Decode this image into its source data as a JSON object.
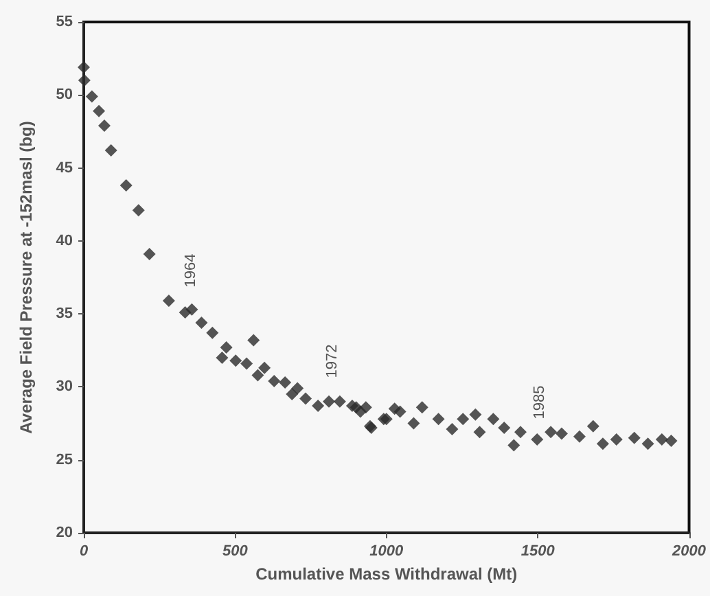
{
  "chart_data": {
    "type": "scatter",
    "xlabel": "Cumulative Mass Withdrawal (Mt)",
    "ylabel": "Average Field Pressure at -152masl (bg)",
    "x": [
      0,
      2,
      27,
      50,
      68,
      90,
      140,
      181,
      217,
      281,
      335,
      357,
      389,
      425,
      457,
      471,
      502,
      538,
      561,
      575,
      597,
      629,
      665,
      688,
      706,
      733,
      774,
      810,
      846,
      887,
      900,
      914,
      932,
      946,
      950,
      991,
      1000,
      1027,
      1045,
      1090,
      1118,
      1172,
      1217,
      1253,
      1294,
      1308,
      1353,
      1389,
      1421,
      1443,
      1498,
      1543,
      1579,
      1638,
      1683,
      1715,
      1760,
      1819,
      1864,
      1910,
      1941
    ],
    "values": [
      51.9,
      51.0,
      49.9,
      48.9,
      47.9,
      46.2,
      43.8,
      42.1,
      39.1,
      35.9,
      35.1,
      35.3,
      34.4,
      33.7,
      32.0,
      32.7,
      31.8,
      31.6,
      33.2,
      30.8,
      31.3,
      30.4,
      30.3,
      29.5,
      29.9,
      29.2,
      28.7,
      29.0,
      29.0,
      28.7,
      28.6,
      28.3,
      28.6,
      27.3,
      27.2,
      27.8,
      27.8,
      28.5,
      28.3,
      27.5,
      28.6,
      27.8,
      27.1,
      27.8,
      28.1,
      26.9,
      27.8,
      27.2,
      26.0,
      26.9,
      26.4,
      26.9,
      26.8,
      26.6,
      27.3,
      26.1,
      26.4,
      26.5,
      26.1,
      26.4,
      26.3
    ],
    "color": "#2b2b2b",
    "marker": "diamond",
    "xlim": [
      0,
      2000
    ],
    "xticks": [
      0,
      500,
      1000,
      1500,
      2000
    ],
    "ylim": [
      20,
      55
    ],
    "yticks": [
      20,
      25,
      30,
      35,
      40,
      45,
      50,
      55
    ],
    "grid": false,
    "annotations": [
      "1964",
      "1972",
      "1985"
    ]
  }
}
